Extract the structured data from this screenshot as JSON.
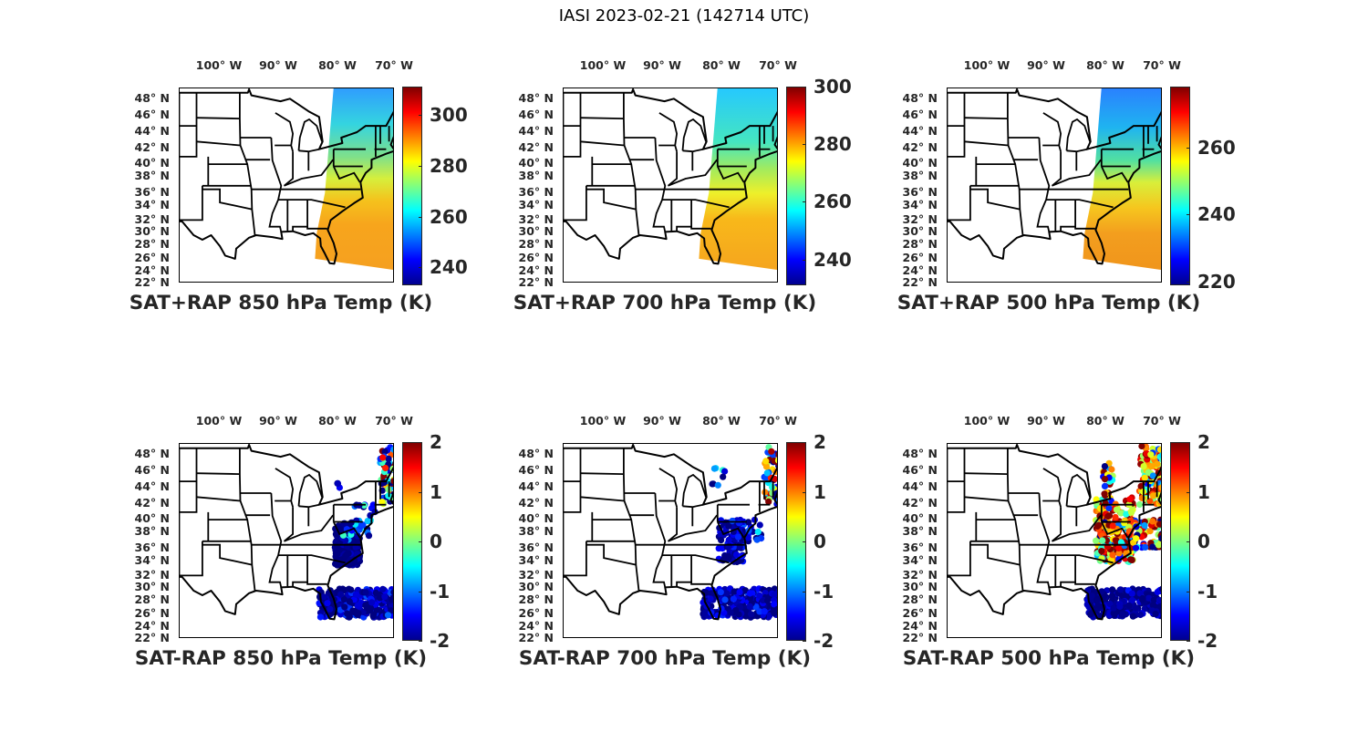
{
  "figure_title": "IASI 2023-02-21 (142714 UTC)",
  "lon_ticks": [
    "100° W",
    "90° W",
    "80° W",
    "70° W"
  ],
  "lat_ticks": [
    "48° N",
    "46° N",
    "44° N",
    "42° N",
    "40° N",
    "38° N",
    "36° N",
    "34° N",
    "32° N",
    "30° N",
    "28° N",
    "26° N",
    "24° N",
    "22° N"
  ],
  "colormap": "jet",
  "panels": [
    {
      "title": "SAT+RAP 850 hPa Temp (K)",
      "type": "swath",
      "clim": [
        233,
        311
      ],
      "cbar_ticks": [
        "240",
        "260",
        "280",
        "300"
      ],
      "cbar_values": [
        240,
        260,
        280,
        300
      ]
    },
    {
      "title": "SAT+RAP 700 hPa Temp (K)",
      "type": "swath",
      "clim": [
        231,
        300
      ],
      "cbar_ticks": [
        "240",
        "260",
        "280",
        "300"
      ],
      "cbar_values": [
        240,
        260,
        280,
        300
      ]
    },
    {
      "title": "SAT+RAP 500 hPa Temp (K)",
      "type": "swath",
      "clim": [
        219,
        278
      ],
      "cbar_ticks": [
        "220",
        "240",
        "260"
      ],
      "cbar_values": [
        220,
        240,
        260
      ]
    },
    {
      "title": "SAT-RAP 850 hPa Temp (K)",
      "type": "scatter",
      "clim": [
        -2,
        2
      ],
      "cbar_ticks": [
        "-2",
        "-1",
        "0",
        "1",
        "2"
      ],
      "cbar_values": [
        -2,
        -1,
        0,
        1,
        2
      ]
    },
    {
      "title": "SAT-RAP 700 hPa Temp (K)",
      "type": "scatter",
      "clim": [
        -2,
        2
      ],
      "cbar_ticks": [
        "-2",
        "-1",
        "0",
        "1",
        "2"
      ],
      "cbar_values": [
        -2,
        -1,
        0,
        1,
        2
      ]
    },
    {
      "title": "SAT-RAP 500 hPa Temp (K)",
      "type": "scatter",
      "clim": [
        -2,
        2
      ],
      "cbar_ticks": [
        "-2",
        "-1",
        "0",
        "1",
        "2"
      ],
      "cbar_values": [
        -2,
        -1,
        0,
        1,
        2
      ]
    }
  ]
}
